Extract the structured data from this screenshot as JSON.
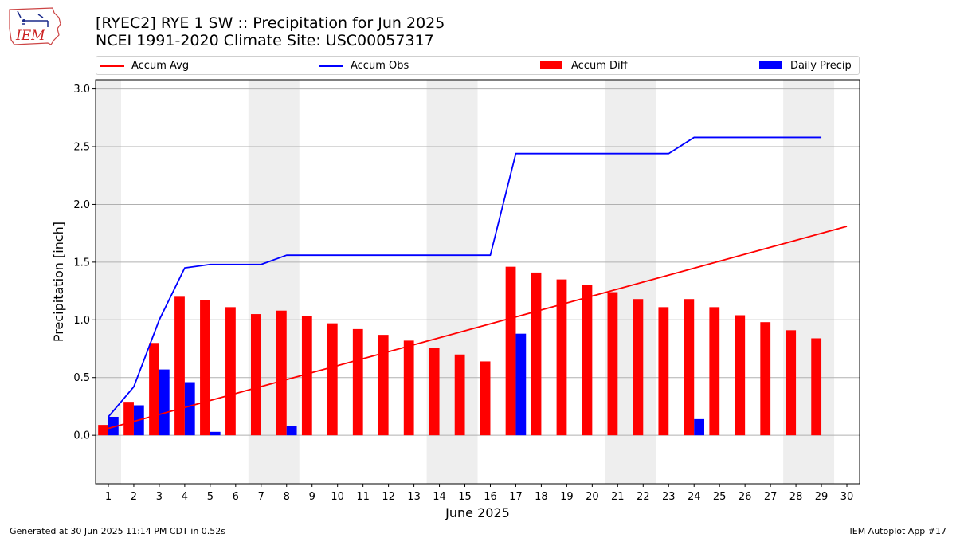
{
  "header": {
    "title_line1": "[RYEC2] RYE 1 SW :: Precipitation for Jun 2025",
    "title_line2": "NCEI 1991-2020 Climate Site: USC00057317",
    "logo_text": "IEM"
  },
  "legend": {
    "items": [
      {
        "label": "Accum Avg",
        "color": "#ff0000",
        "kind": "line"
      },
      {
        "label": "Accum Obs",
        "color": "#0000ff",
        "kind": "line"
      },
      {
        "label": "Accum Diff",
        "color": "#ff0000",
        "kind": "bar"
      },
      {
        "label": "Daily Precip",
        "color": "#0000ff",
        "kind": "bar"
      }
    ]
  },
  "footer": {
    "generated": "Generated at 30 Jun 2025 11:14 PM CDT in 0.52s",
    "app": "IEM Autoplot App #17"
  },
  "chart_data": {
    "type": "bar",
    "title": "[RYEC2] RYE 1 SW :: Precipitation for Jun 2025",
    "subtitle": "NCEI 1991-2020 Climate Site: USC00057317",
    "xlabel": "June 2025",
    "ylabel": "Precipitation [inch]",
    "ylim": [
      -0.42,
      3.08
    ],
    "xlim": [
      0.5,
      30.5
    ],
    "yticks": [
      0.0,
      0.5,
      1.0,
      1.5,
      2.0,
      2.5,
      3.0
    ],
    "ytick_labels": [
      "0.0",
      "0.5",
      "1.0",
      "1.5",
      "2.0",
      "2.5",
      "3.0"
    ],
    "x": [
      1,
      2,
      3,
      4,
      5,
      6,
      7,
      8,
      9,
      10,
      11,
      12,
      13,
      14,
      15,
      16,
      17,
      18,
      19,
      20,
      21,
      22,
      23,
      24,
      25,
      26,
      27,
      28,
      29,
      30
    ],
    "grid": "horizontal",
    "legend_position": "top",
    "weekend_shading": [
      [
        0.5,
        1.5
      ],
      [
        6.5,
        8.5
      ],
      [
        13.5,
        15.5
      ],
      [
        20.5,
        22.5
      ],
      [
        27.5,
        29.5
      ]
    ],
    "series": [
      {
        "name": "Accum Avg",
        "kind": "line",
        "color": "#ff0000",
        "x": [
          1,
          30
        ],
        "values": [
          0.06,
          1.81
        ]
      },
      {
        "name": "Accum Obs",
        "kind": "line",
        "color": "#0000ff",
        "x": [
          1,
          2,
          3,
          4,
          5,
          6,
          7,
          8,
          9,
          10,
          11,
          12,
          13,
          14,
          15,
          16,
          17,
          18,
          19,
          20,
          21,
          22,
          23,
          24,
          25,
          26,
          27,
          28,
          29
        ],
        "values": [
          0.16,
          0.42,
          1.0,
          1.45,
          1.48,
          1.48,
          1.48,
          1.56,
          1.56,
          1.56,
          1.56,
          1.56,
          1.56,
          1.56,
          1.56,
          1.56,
          2.44,
          2.44,
          2.44,
          2.44,
          2.44,
          2.44,
          2.44,
          2.58,
          2.58,
          2.58,
          2.58,
          2.58,
          2.58
        ]
      },
      {
        "name": "Accum Diff",
        "kind": "bar",
        "color": "#ff0000",
        "x": [
          1,
          2,
          3,
          4,
          5,
          6,
          7,
          8,
          9,
          10,
          11,
          12,
          13,
          14,
          15,
          16,
          17,
          18,
          19,
          20,
          21,
          22,
          23,
          24,
          25,
          26,
          27,
          28,
          29
        ],
        "values": [
          0.09,
          0.29,
          0.8,
          1.2,
          1.17,
          1.11,
          1.05,
          1.08,
          1.03,
          0.97,
          0.92,
          0.87,
          0.82,
          0.76,
          0.7,
          0.64,
          1.46,
          1.41,
          1.35,
          1.3,
          1.24,
          1.18,
          1.11,
          1.18,
          1.11,
          1.04,
          0.98,
          0.91,
          0.84
        ]
      },
      {
        "name": "Daily Precip",
        "kind": "bar",
        "color": "#0000ff",
        "x": [
          1,
          2,
          3,
          4,
          5,
          8,
          17,
          24
        ],
        "values": [
          0.16,
          0.26,
          0.57,
          0.46,
          0.03,
          0.08,
          0.88,
          0.14
        ]
      }
    ]
  }
}
